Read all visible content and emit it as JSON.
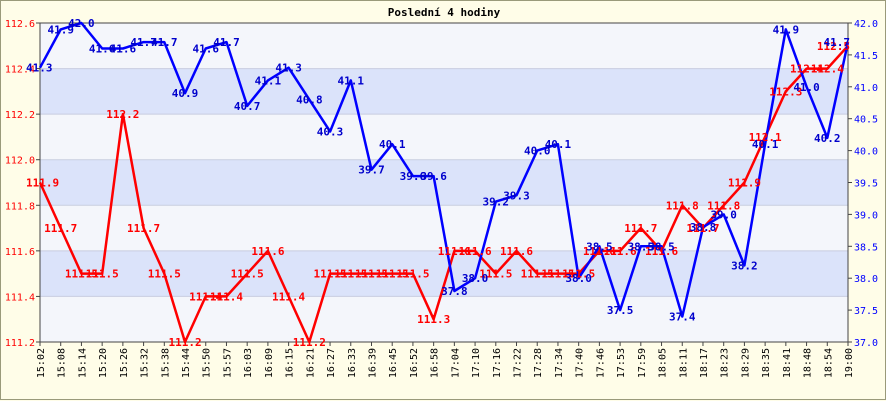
{
  "chart_data": {
    "type": "line",
    "title": "Poslední 4 hodiny",
    "categories": [
      "15:02",
      "15:08",
      "15:14",
      "15:20",
      "15:26",
      "15:32",
      "15:38",
      "15:44",
      "15:50",
      "15:57",
      "16:03",
      "16:09",
      "16:15",
      "16:21",
      "16:27",
      "16:33",
      "16:39",
      "16:45",
      "16:52",
      "16:58",
      "17:04",
      "17:10",
      "17:16",
      "17:22",
      "17:28",
      "17:34",
      "17:40",
      "17:46",
      "17:53",
      "17:59",
      "18:05",
      "18:11",
      "18:17",
      "18:23",
      "18:29",
      "18:35",
      "18:41",
      "18:48",
      "18:54",
      "19:00"
    ],
    "left_axis": {
      "ylim": [
        111.2,
        112.6
      ],
      "ticks": [
        "111.2",
        "111.4",
        "111.6",
        "111.8",
        "112.0",
        "112.2",
        "112.4",
        "112.6"
      ],
      "color": "#ff0000"
    },
    "right_axis": {
      "ylim": [
        37.0,
        42.0
      ],
      "ticks": [
        "37.0",
        "37.5",
        "38.0",
        "38.5",
        "39.0",
        "39.5",
        "40.0",
        "40.5",
        "41.0",
        "41.5",
        "42.0"
      ],
      "color": "#0000ff"
    },
    "grid": true,
    "series": [
      {
        "axis": "left",
        "color": "#ff0000",
        "values": [
          111.9,
          111.7,
          111.5,
          111.5,
          112.2,
          111.7,
          111.5,
          111.2,
          111.4,
          111.4,
          111.5,
          111.6,
          111.4,
          111.2,
          111.5,
          111.5,
          111.5,
          111.5,
          111.5,
          111.3,
          111.6,
          111.6,
          111.5,
          111.6,
          111.5,
          111.5,
          111.5,
          111.6,
          111.6,
          111.7,
          111.6,
          111.8,
          111.7,
          111.8,
          111.9,
          112.1,
          112.3,
          112.4,
          112.4,
          112.5
        ]
      },
      {
        "axis": "right",
        "color": "#0000ff",
        "values": [
          41.3,
          41.9,
          42.0,
          41.6,
          41.6,
          41.7,
          41.7,
          40.9,
          41.6,
          41.7,
          40.7,
          41.1,
          41.3,
          40.8,
          40.3,
          41.1,
          39.7,
          40.1,
          39.6,
          39.6,
          37.8,
          38.0,
          39.2,
          39.3,
          40.0,
          40.1,
          38.0,
          38.5,
          37.5,
          38.5,
          38.5,
          37.4,
          38.8,
          39.0,
          38.2,
          40.1,
          41.9,
          41.0,
          40.2,
          41.7
        ]
      }
    ]
  }
}
